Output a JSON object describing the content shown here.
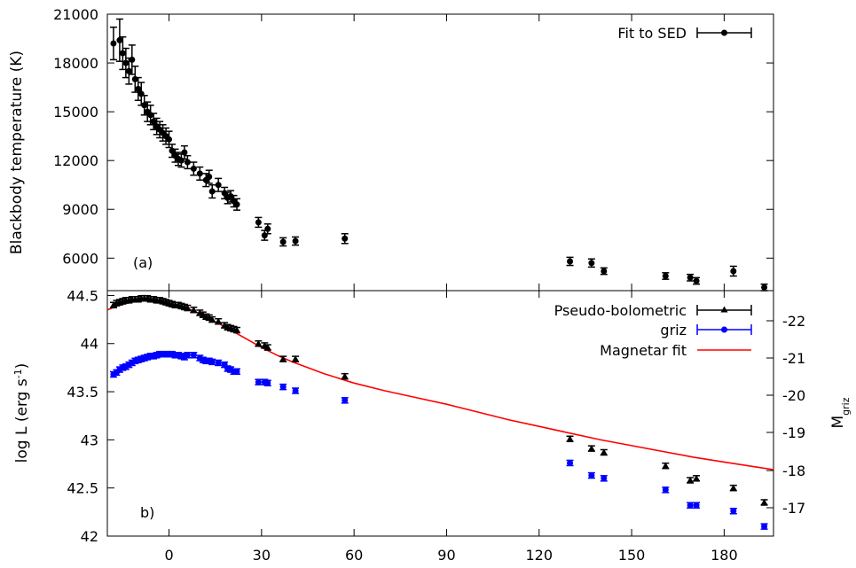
{
  "chart_data": [
    {
      "type": "scatter",
      "panel_label": "(a)",
      "xlabel": "",
      "ylabel": "Blackbody temperature (K)",
      "xlim": [
        -20,
        196
      ],
      "ylim": [
        4000,
        21000
      ],
      "yticks": [
        6000,
        9000,
        12000,
        15000,
        18000,
        21000
      ],
      "yticklabels": [
        "6000",
        "9000",
        "12000",
        "15000",
        "18000",
        "21000"
      ],
      "legend": {
        "position": "top-right",
        "entries": [
          "Fit to SED"
        ]
      },
      "series": [
        {
          "name": "Fit to SED",
          "marker": "circle",
          "color": "#000000",
          "points": [
            [
              -18,
              19200,
              1000
            ],
            [
              -16,
              19400,
              1300
            ],
            [
              -15,
              18600,
              1000
            ],
            [
              -14,
              18000,
              900
            ],
            [
              -13,
              17500,
              800
            ],
            [
              -12,
              18200,
              900
            ],
            [
              -11,
              17000,
              800
            ],
            [
              -10,
              16400,
              700
            ],
            [
              -9,
              16100,
              700
            ],
            [
              -8,
              15400,
              600
            ],
            [
              -7,
              15000,
              600
            ],
            [
              -6,
              14800,
              600
            ],
            [
              -5,
              14400,
              500
            ],
            [
              -4,
              14100,
              500
            ],
            [
              -3,
              13900,
              500
            ],
            [
              -2,
              13700,
              500
            ],
            [
              -1,
              13500,
              500
            ],
            [
              0,
              13300,
              500
            ],
            [
              1,
              12600,
              400
            ],
            [
              2,
              12300,
              400
            ],
            [
              3,
              12100,
              400
            ],
            [
              4,
              12000,
              400
            ],
            [
              5,
              12500,
              400
            ],
            [
              6,
              11900,
              400
            ],
            [
              8,
              11500,
              400
            ],
            [
              10,
              11200,
              400
            ],
            [
              12,
              10800,
              400
            ],
            [
              13,
              11000,
              400
            ],
            [
              14,
              10100,
              400
            ],
            [
              16,
              10500,
              400
            ],
            [
              18,
              10000,
              350
            ],
            [
              19,
              9700,
              350
            ],
            [
              20,
              9800,
              350
            ],
            [
              21,
              9500,
              350
            ],
            [
              22,
              9300,
              350
            ],
            [
              29,
              8200,
              300
            ],
            [
              31,
              7400,
              300
            ],
            [
              32,
              7800,
              300
            ],
            [
              37,
              7000,
              250
            ],
            [
              41,
              7050,
              250
            ],
            [
              57,
              7200,
              300
            ],
            [
              130,
              5800,
              250
            ],
            [
              137,
              5700,
              250
            ],
            [
              141,
              5200,
              200
            ],
            [
              161,
              4900,
              200
            ],
            [
              169,
              4800,
              200
            ],
            [
              171,
              4600,
              200
            ],
            [
              183,
              5200,
              300
            ],
            [
              193,
              4200,
              200
            ]
          ]
        }
      ]
    },
    {
      "type": "line",
      "panel_label": "b)",
      "xlabel": "",
      "ylabel": "log L (erg s-1)",
      "ylabel_right": "Mgriz",
      "xlim": [
        -20,
        196
      ],
      "ylim": [
        42,
        44.55
      ],
      "xticks": [
        0,
        30,
        60,
        90,
        120,
        150,
        180
      ],
      "xticklabels": [
        "0",
        "30",
        "60",
        "90",
        "120",
        "150",
        "180"
      ],
      "yticks": [
        42,
        42.5,
        43,
        43.5,
        44,
        44.5
      ],
      "yticklabels": [
        "42",
        "42.5",
        "43",
        "43.5",
        "44",
        "44.5"
      ],
      "y2ticks": [
        -17,
        -18,
        -19,
        -20,
        -21,
        -22
      ],
      "y2ticklabels": [
        "-17",
        "-18",
        "-19",
        "-20",
        "-21",
        "-22"
      ],
      "legend": {
        "position": "top-right",
        "entries": [
          "Pseudo-bolometric",
          "griz",
          "Magnetar fit"
        ]
      },
      "series": [
        {
          "name": "Pseudo-bolometric",
          "marker": "triangle",
          "color": "#000000",
          "points": [
            [
              -18,
              44.4
            ],
            [
              -17,
              44.42
            ],
            [
              -16,
              44.43
            ],
            [
              -15,
              44.44
            ],
            [
              -14,
              44.45
            ],
            [
              -13,
              44.45
            ],
            [
              -12,
              44.46
            ],
            [
              -11,
              44.46
            ],
            [
              -10,
              44.46
            ],
            [
              -9,
              44.47
            ],
            [
              -8,
              44.47
            ],
            [
              -7,
              44.47
            ],
            [
              -6,
              44.46
            ],
            [
              -5,
              44.46
            ],
            [
              -4,
              44.45
            ],
            [
              -3,
              44.45
            ],
            [
              -2,
              44.44
            ],
            [
              -1,
              44.43
            ],
            [
              0,
              44.42
            ],
            [
              1,
              44.41
            ],
            [
              2,
              44.4
            ],
            [
              3,
              44.4
            ],
            [
              4,
              44.39
            ],
            [
              5,
              44.38
            ],
            [
              6,
              44.37
            ],
            [
              8,
              44.35
            ],
            [
              10,
              44.32
            ],
            [
              11,
              44.3
            ],
            [
              12,
              44.28
            ],
            [
              13,
              44.27
            ],
            [
              14,
              44.25
            ],
            [
              16,
              44.23
            ],
            [
              18,
              44.19
            ],
            [
              19,
              44.17
            ],
            [
              20,
              44.16
            ],
            [
              21,
              44.15
            ],
            [
              22,
              44.14
            ],
            [
              29,
              44.0
            ],
            [
              31,
              43.98
            ],
            [
              32,
              43.96
            ],
            [
              37,
              43.84
            ],
            [
              41,
              43.84
            ],
            [
              57,
              43.66
            ],
            [
              130,
              43.01
            ],
            [
              137,
              42.91
            ],
            [
              141,
              42.87
            ],
            [
              161,
              42.73
            ],
            [
              169,
              42.58
            ],
            [
              171,
              42.6
            ],
            [
              183,
              42.5
            ],
            [
              193,
              42.35
            ]
          ]
        },
        {
          "name": "griz",
          "marker": "circle",
          "color": "#0000ff",
          "points": [
            [
              -18,
              43.68
            ],
            [
              -17,
              43.7
            ],
            [
              -16,
              43.73
            ],
            [
              -15,
              43.75
            ],
            [
              -14,
              43.76
            ],
            [
              -13,
              43.78
            ],
            [
              -12,
              43.8
            ],
            [
              -11,
              43.82
            ],
            [
              -10,
              43.83
            ],
            [
              -9,
              43.84
            ],
            [
              -8,
              43.85
            ],
            [
              -7,
              43.86
            ],
            [
              -6,
              43.87
            ],
            [
              -5,
              43.87
            ],
            [
              -4,
              43.88
            ],
            [
              -3,
              43.89
            ],
            [
              -2,
              43.89
            ],
            [
              -1,
              43.89
            ],
            [
              0,
              43.89
            ],
            [
              1,
              43.89
            ],
            [
              2,
              43.88
            ],
            [
              3,
              43.88
            ],
            [
              4,
              43.87
            ],
            [
              5,
              43.86
            ],
            [
              6,
              43.88
            ],
            [
              8,
              43.88
            ],
            [
              10,
              43.85
            ],
            [
              11,
              43.83
            ],
            [
              12,
              43.82
            ],
            [
              13,
              43.82
            ],
            [
              14,
              43.81
            ],
            [
              16,
              43.8
            ],
            [
              18,
              43.78
            ],
            [
              19,
              43.74
            ],
            [
              20,
              43.73
            ],
            [
              21,
              43.71
            ],
            [
              22,
              43.71
            ],
            [
              29,
              43.6
            ],
            [
              31,
              43.6
            ],
            [
              32,
              43.59
            ],
            [
              37,
              43.55
            ],
            [
              41,
              43.51
            ],
            [
              57,
              43.41
            ],
            [
              130,
              42.76
            ],
            [
              137,
              42.63
            ],
            [
              141,
              42.6
            ],
            [
              161,
              42.48
            ],
            [
              169,
              42.32
            ],
            [
              171,
              42.32
            ],
            [
              183,
              42.26
            ],
            [
              193,
              42.1
            ]
          ]
        },
        {
          "name": "Magnetar fit",
          "marker": "line",
          "color": "#ff0000",
          "points": [
            [
              -20,
              44.35
            ],
            [
              -16,
              44.4
            ],
            [
              -12,
              44.43
            ],
            [
              -8,
              44.45
            ],
            [
              -4,
              44.44
            ],
            [
              0,
              44.42
            ],
            [
              4,
              44.39
            ],
            [
              8,
              44.34
            ],
            [
              12,
              44.28
            ],
            [
              16,
              44.21
            ],
            [
              20,
              44.14
            ],
            [
              25,
              44.05
            ],
            [
              30,
              43.96
            ],
            [
              35,
              43.88
            ],
            [
              40,
              43.81
            ],
            [
              50,
              43.69
            ],
            [
              60,
              43.59
            ],
            [
              70,
              43.51
            ],
            [
              80,
              43.44
            ],
            [
              90,
              43.37
            ],
            [
              100,
              43.29
            ],
            [
              110,
              43.21
            ],
            [
              120,
              43.14
            ],
            [
              130,
              43.07
            ],
            [
              140,
              43.0
            ],
            [
              150,
              42.94
            ],
            [
              160,
              42.88
            ],
            [
              170,
              42.82
            ],
            [
              180,
              42.77
            ],
            [
              190,
              42.72
            ],
            [
              196,
              42.69
            ]
          ]
        }
      ]
    }
  ]
}
